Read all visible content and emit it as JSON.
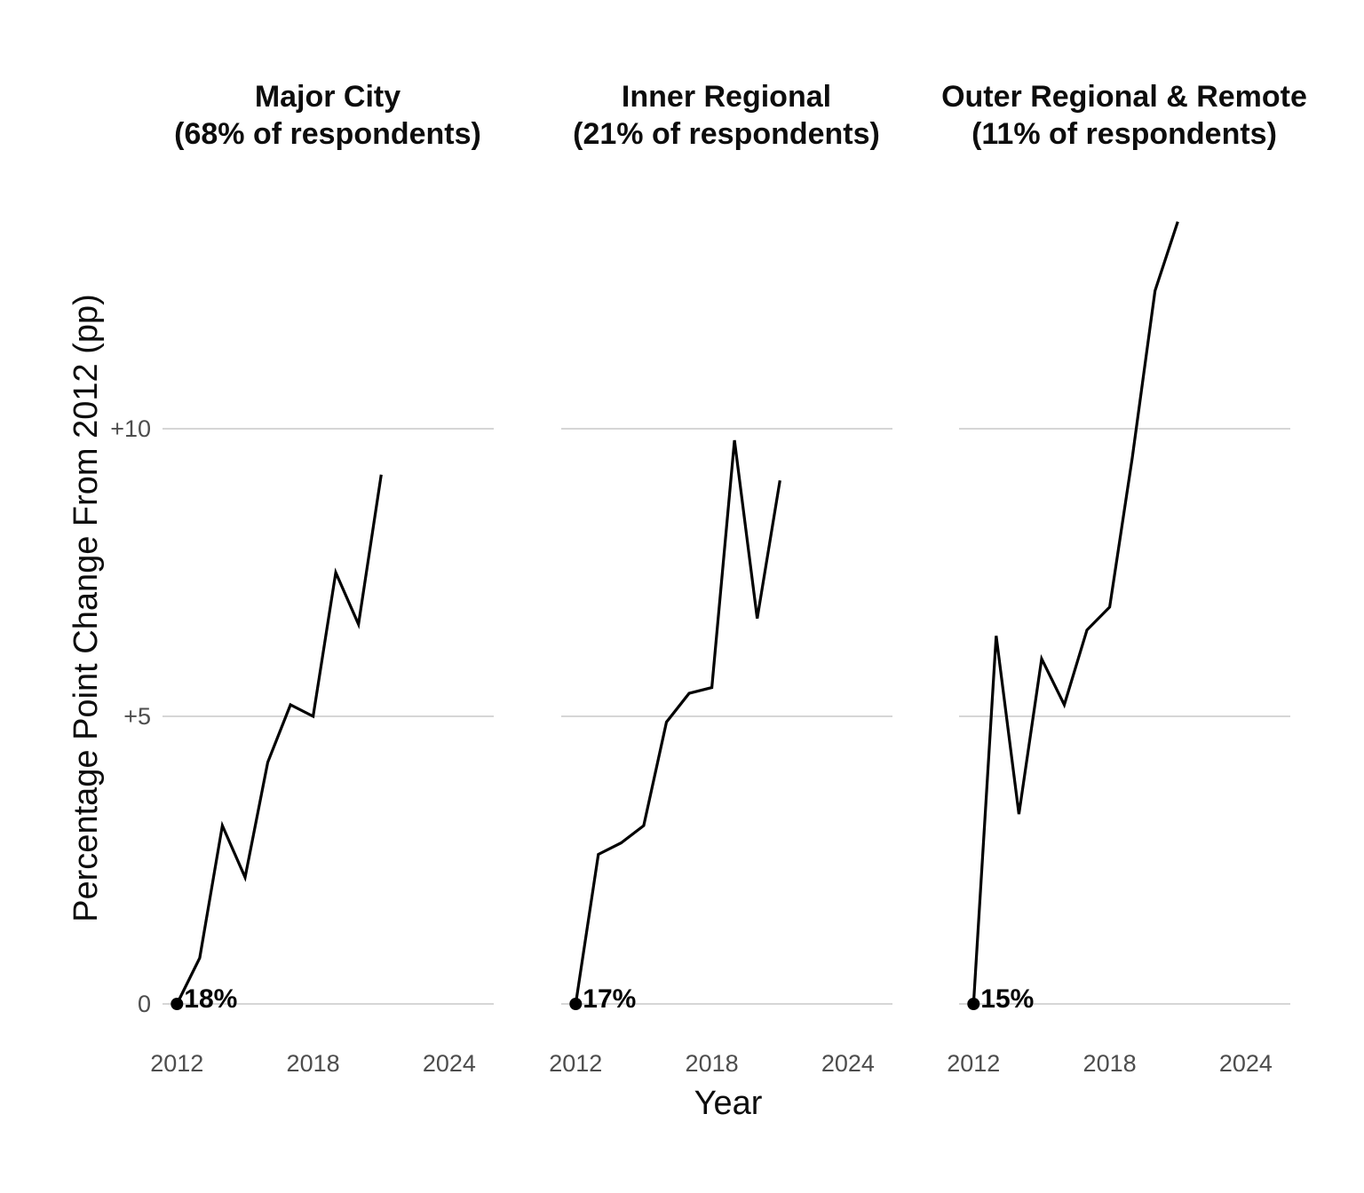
{
  "figure": {
    "x_axis_title": "Year",
    "y_axis_title": "Percentage Point Change From 2012 (pp)",
    "colors": {
      "background": "#ffffff",
      "line": "#000000",
      "gridline": "#d6d6d6",
      "tick_label": "#4d4d4d",
      "title_text": "#0d0d0d"
    }
  },
  "chart_data": {
    "type": "line",
    "title": "",
    "xlabel": "Year",
    "ylabel": "Percentage Point Change From 2012 (pp)",
    "grid": "horizontal-major-only",
    "legend": "none",
    "x": [
      2012,
      2013,
      2014,
      2015,
      2016,
      2017,
      2018,
      2019,
      2020,
      2021
    ],
    "xlim": [
      2011.4,
      2026.0
    ],
    "ylim": [
      -0.45,
      13.66
    ],
    "x_ticks": {
      "values": [
        2012,
        2018,
        2024
      ],
      "labels": [
        "2012",
        "2018",
        "2024"
      ]
    },
    "y_ticks": {
      "values": [
        0,
        5,
        10
      ],
      "labels": [
        "0",
        "+5",
        "+10"
      ]
    },
    "panels": [
      {
        "title_line1": "Major City",
        "title_line2": "(68% of respondents)",
        "start_label": "18%",
        "series_name": "Major City",
        "values": [
          0,
          0.8,
          3.1,
          2.2,
          4.2,
          5.2,
          5.0,
          7.5,
          6.6,
          9.2
        ]
      },
      {
        "title_line1": "Inner Regional",
        "title_line2": "(21% of respondents)",
        "start_label": "17%",
        "series_name": "Inner Regional",
        "values": [
          0,
          2.6,
          2.8,
          3.1,
          4.9,
          5.4,
          5.5,
          9.8,
          6.7,
          9.1
        ]
      },
      {
        "title_line1": "Outer Regional & Remote",
        "title_line2": "(11% of respondents)",
        "start_label": "15%",
        "series_name": "Outer Regional & Remote",
        "values": [
          0,
          6.4,
          3.3,
          6.0,
          5.2,
          6.5,
          6.9,
          9.5,
          12.4,
          13.6
        ]
      }
    ]
  }
}
